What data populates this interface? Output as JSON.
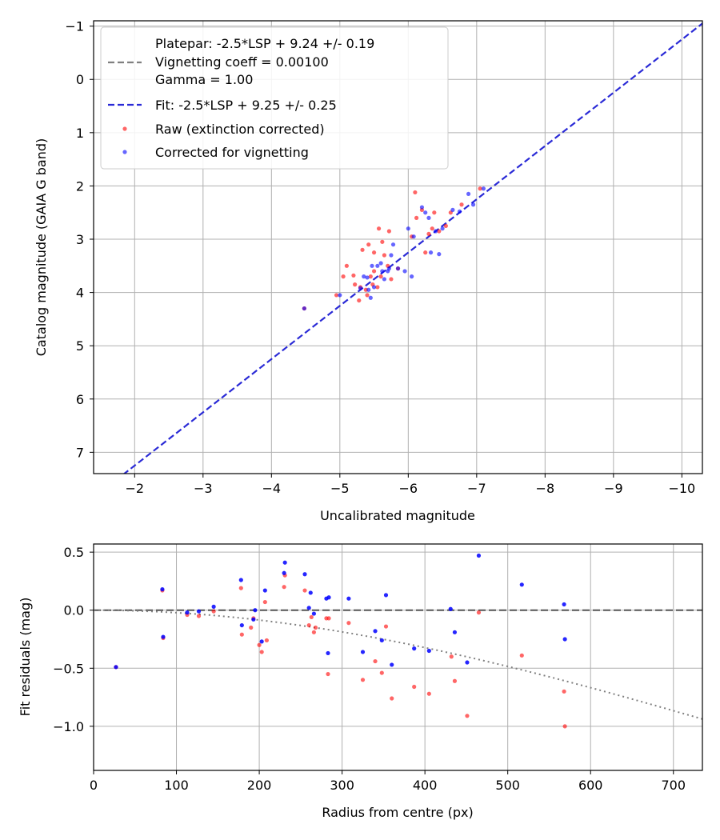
{
  "colors": {
    "raw": "#ff0000",
    "corrected": "#0000ff",
    "fit_line": "#2a2ad6",
    "platepar_line": "#808080",
    "grid": "#b0b0b0"
  },
  "chart_data": [
    {
      "type": "scatter",
      "id": "top",
      "xlabel": "Uncalibrated magnitude",
      "ylabel": "Catalog magnitude (GAIA G band)",
      "xlim": [
        -1.4,
        -10.3
      ],
      "ylim": [
        7.4,
        -1.1
      ],
      "x_ticks": [
        -2,
        -3,
        -4,
        -5,
        -6,
        -7,
        -8,
        -9,
        -10
      ],
      "x_tick_labels": [
        "−2",
        "−3",
        "−4",
        "−5",
        "−6",
        "−7",
        "−8",
        "−9",
        "−10"
      ],
      "y_ticks": [
        -1,
        0,
        1,
        2,
        3,
        4,
        5,
        6,
        7
      ],
      "y_tick_labels": [
        "−1",
        "0",
        "1",
        "2",
        "3",
        "4",
        "5",
        "6",
        "7"
      ],
      "grid": true,
      "legend_position": "top-left",
      "legend": {
        "platepar_line1": "Platepar: -2.5*LSP + 9.24 +/- 0.19",
        "platepar_line2": "Vignetting coeff = 0.00100",
        "platepar_line3": "Gamma = 1.00",
        "fit": "Fit: -2.5*LSP + 9.25 +/- 0.25",
        "raw": "Raw (extinction corrected)",
        "corrected": "Corrected for vignetting"
      },
      "fit_line": {
        "slope": 1.0,
        "intercept": 9.25,
        "style": "dashed"
      },
      "series": [
        {
          "name": "Raw (extinction corrected)",
          "points": [
            [
              -4.48,
              4.3
            ],
            [
              -4.95,
              4.05
            ],
            [
              -5.05,
              3.7
            ],
            [
              -5.1,
              3.5
            ],
            [
              -5.2,
              3.68
            ],
            [
              -5.22,
              3.85
            ],
            [
              -5.28,
              4.15
            ],
            [
              -5.3,
              3.9
            ],
            [
              -5.33,
              3.2
            ],
            [
              -5.38,
              3.95
            ],
            [
              -5.4,
              4.05
            ],
            [
              -5.42,
              3.1
            ],
            [
              -5.45,
              3.7
            ],
            [
              -5.48,
              3.85
            ],
            [
              -5.5,
              3.25
            ],
            [
              -5.5,
              3.6
            ],
            [
              -5.55,
              3.9
            ],
            [
              -5.57,
              2.8
            ],
            [
              -5.6,
              3.7
            ],
            [
              -5.62,
              3.05
            ],
            [
              -5.65,
              3.3
            ],
            [
              -5.7,
              3.5
            ],
            [
              -5.72,
              2.85
            ],
            [
              -5.75,
              3.75
            ],
            [
              -5.85,
              3.55
            ],
            [
              -6.05,
              2.95
            ],
            [
              -6.1,
              2.12
            ],
            [
              -6.12,
              2.6
            ],
            [
              -6.2,
              2.45
            ],
            [
              -6.25,
              3.25
            ],
            [
              -6.3,
              2.9
            ],
            [
              -6.35,
              2.8
            ],
            [
              -6.38,
              2.5
            ],
            [
              -6.45,
              2.85
            ],
            [
              -6.55,
              2.75
            ],
            [
              -6.62,
              2.5
            ],
            [
              -6.78,
              2.35
            ],
            [
              -7.05,
              2.05
            ]
          ]
        },
        {
          "name": "Corrected for vignetting",
          "points": [
            [
              -4.48,
              4.3
            ],
            [
              -5.0,
              4.05
            ],
            [
              -5.3,
              3.92
            ],
            [
              -5.35,
              3.7
            ],
            [
              -5.4,
              3.72
            ],
            [
              -5.42,
              3.95
            ],
            [
              -5.45,
              4.1
            ],
            [
              -5.47,
              3.5
            ],
            [
              -5.5,
              3.9
            ],
            [
              -5.55,
              3.5
            ],
            [
              -5.6,
              3.45
            ],
            [
              -5.62,
              3.6
            ],
            [
              -5.65,
              3.75
            ],
            [
              -5.7,
              3.6
            ],
            [
              -5.72,
              3.55
            ],
            [
              -5.75,
              3.3
            ],
            [
              -5.78,
              3.1
            ],
            [
              -5.85,
              3.55
            ],
            [
              -5.95,
              3.6
            ],
            [
              -6.0,
              2.8
            ],
            [
              -6.05,
              3.7
            ],
            [
              -6.08,
              2.95
            ],
            [
              -6.2,
              2.4
            ],
            [
              -6.25,
              2.5
            ],
            [
              -6.3,
              2.6
            ],
            [
              -6.33,
              3.25
            ],
            [
              -6.4,
              2.85
            ],
            [
              -6.45,
              3.28
            ],
            [
              -6.5,
              2.8
            ],
            [
              -6.65,
              2.45
            ],
            [
              -6.75,
              2.48
            ],
            [
              -6.88,
              2.15
            ],
            [
              -6.95,
              2.35
            ],
            [
              -7.1,
              2.05
            ]
          ]
        }
      ]
    },
    {
      "type": "scatter",
      "id": "bottom",
      "xlabel": "Radius from centre (px)",
      "ylabel": "Fit residuals (mag)",
      "xlim": [
        0,
        735
      ],
      "ylim": [
        -1.38,
        0.57
      ],
      "x_ticks": [
        0,
        100,
        200,
        300,
        400,
        500,
        600,
        700
      ],
      "x_tick_labels": [
        "0",
        "100",
        "200",
        "300",
        "400",
        "500",
        "600",
        "700"
      ],
      "y_ticks": [
        0.5,
        0.0,
        -0.5,
        -1.0
      ],
      "y_tick_labels": [
        "0.5",
        "0.0",
        "−0.5",
        "−1.0"
      ],
      "grid": true,
      "zero_line": {
        "y": 0,
        "style": "dashed"
      },
      "vignetting_curve": {
        "coeff": 0.001,
        "style": "dotted"
      },
      "series": [
        {
          "name": "Raw (extinction corrected)",
          "points": [
            [
              27,
              -0.49
            ],
            [
              83,
              0.17
            ],
            [
              84,
              -0.24
            ],
            [
              113,
              -0.04
            ],
            [
              127,
              -0.05
            ],
            [
              145,
              -0.01
            ],
            [
              178,
              0.19
            ],
            [
              179,
              -0.21
            ],
            [
              190,
              -0.15
            ],
            [
              193,
              -0.07
            ],
            [
              200,
              -0.3
            ],
            [
              203,
              -0.36
            ],
            [
              207,
              0.07
            ],
            [
              209,
              -0.26
            ],
            [
              230,
              0.2
            ],
            [
              231,
              0.3
            ],
            [
              255,
              0.17
            ],
            [
              260,
              -0.13
            ],
            [
              263,
              -0.06
            ],
            [
              266,
              -0.19
            ],
            [
              268,
              -0.15
            ],
            [
              281,
              -0.07
            ],
            [
              283,
              -0.55
            ],
            [
              284,
              -0.07
            ],
            [
              308,
              -0.11
            ],
            [
              325,
              -0.6
            ],
            [
              340,
              -0.44
            ],
            [
              348,
              -0.54
            ],
            [
              353,
              -0.14
            ],
            [
              360,
              -0.76
            ],
            [
              387,
              -0.66
            ],
            [
              405,
              -0.72
            ],
            [
              432,
              -0.4
            ],
            [
              436,
              -0.61
            ],
            [
              451,
              -0.91
            ],
            [
              465,
              -0.02
            ],
            [
              517,
              -0.39
            ],
            [
              568,
              -0.7
            ],
            [
              569,
              -1.0
            ]
          ]
        },
        {
          "name": "Corrected for vignetting",
          "points": [
            [
              27,
              -0.49
            ],
            [
              83,
              0.18
            ],
            [
              84,
              -0.23
            ],
            [
              113,
              -0.02
            ],
            [
              127,
              -0.01
            ],
            [
              145,
              0.03
            ],
            [
              178,
              0.26
            ],
            [
              179,
              -0.13
            ],
            [
              193,
              -0.08
            ],
            [
              195,
              0.0
            ],
            [
              203,
              -0.27
            ],
            [
              207,
              0.17
            ],
            [
              230,
              0.32
            ],
            [
              231,
              0.41
            ],
            [
              255,
              0.31
            ],
            [
              260,
              0.02
            ],
            [
              262,
              0.15
            ],
            [
              266,
              -0.03
            ],
            [
              281,
              0.1
            ],
            [
              283,
              -0.37
            ],
            [
              284,
              0.11
            ],
            [
              308,
              0.1
            ],
            [
              325,
              -0.36
            ],
            [
              340,
              -0.18
            ],
            [
              348,
              -0.26
            ],
            [
              353,
              0.13
            ],
            [
              360,
              -0.47
            ],
            [
              387,
              -0.33
            ],
            [
              405,
              -0.35
            ],
            [
              431,
              0.01
            ],
            [
              436,
              -0.19
            ],
            [
              451,
              -0.45
            ],
            [
              465,
              0.47
            ],
            [
              517,
              0.22
            ],
            [
              568,
              0.05
            ],
            [
              569,
              -0.25
            ]
          ]
        }
      ]
    }
  ]
}
